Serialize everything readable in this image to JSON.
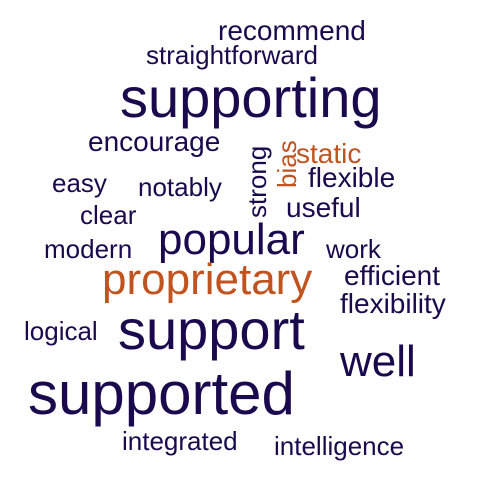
{
  "colors": {
    "primary": "#1a0a4d",
    "accent": "#c0531f"
  },
  "words": [
    {
      "key": "recommend",
      "text": "recommend",
      "color": "accent_no",
      "tone": "primary",
      "weight": 2
    },
    {
      "key": "straightforward",
      "text": "straightforward",
      "tone": "primary",
      "weight": 2
    },
    {
      "key": "supporting",
      "text": "supporting",
      "tone": "primary",
      "weight": 5
    },
    {
      "key": "encourage",
      "text": "encourage",
      "tone": "primary",
      "weight": 2
    },
    {
      "key": "strong",
      "text": "strong",
      "tone": "primary",
      "weight": 2,
      "vertical": true
    },
    {
      "key": "bias",
      "text": "bias",
      "tone": "accent",
      "weight": 2,
      "vertical": true
    },
    {
      "key": "static",
      "text": "static",
      "tone": "accent",
      "weight": 2
    },
    {
      "key": "easy",
      "text": "easy",
      "tone": "primary",
      "weight": 2
    },
    {
      "key": "notably",
      "text": "notably",
      "tone": "primary",
      "weight": 2
    },
    {
      "key": "flexible",
      "text": "flexible",
      "tone": "primary",
      "weight": 2
    },
    {
      "key": "clear",
      "text": "clear",
      "tone": "primary",
      "weight": 2
    },
    {
      "key": "useful",
      "text": "useful",
      "tone": "primary",
      "weight": 2
    },
    {
      "key": "modern",
      "text": "modern",
      "tone": "primary",
      "weight": 2
    },
    {
      "key": "popular",
      "text": "popular",
      "tone": "primary",
      "weight": 4
    },
    {
      "key": "work",
      "text": "work",
      "tone": "primary",
      "weight": 2
    },
    {
      "key": "proprietary",
      "text": "proprietary",
      "tone": "accent",
      "weight": 4
    },
    {
      "key": "efficient",
      "text": "efficient",
      "tone": "primary",
      "weight": 2
    },
    {
      "key": "flexibility",
      "text": "flexibility",
      "tone": "primary",
      "weight": 2
    },
    {
      "key": "logical",
      "text": "logical",
      "tone": "primary",
      "weight": 2
    },
    {
      "key": "support",
      "text": "support",
      "tone": "primary",
      "weight": 5
    },
    {
      "key": "well",
      "text": "well",
      "tone": "primary",
      "weight": 3
    },
    {
      "key": "supported",
      "text": "supported",
      "tone": "primary",
      "weight": 5
    },
    {
      "key": "integrated",
      "text": "integrated",
      "tone": "primary",
      "weight": 2
    },
    {
      "key": "intelligence",
      "text": "intelligence",
      "tone": "primary",
      "weight": 2
    }
  ]
}
